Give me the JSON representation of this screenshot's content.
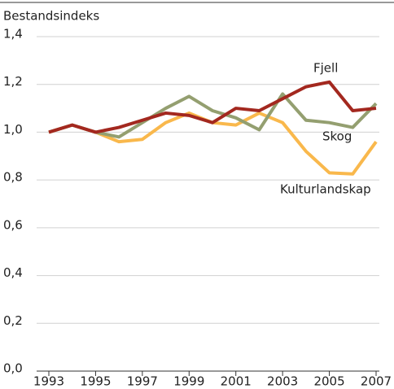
{
  "chart_data": {
    "type": "line",
    "y_label": "Bestandsindeks",
    "x": [
      1993,
      1994,
      1995,
      1996,
      1997,
      1998,
      1999,
      2000,
      2001,
      2002,
      2003,
      2004,
      2005,
      2006,
      2007
    ],
    "series": [
      {
        "name": "Kulturlandskap",
        "color": "#f9b84c",
        "values": [
          1.0,
          1.03,
          1.0,
          0.96,
          0.97,
          1.04,
          1.08,
          1.04,
          1.03,
          1.08,
          1.04,
          0.92,
          0.83,
          0.825,
          0.96
        ]
      },
      {
        "name": "Skog",
        "color": "#949f70",
        "values": [
          1.0,
          1.03,
          1.0,
          0.98,
          1.04,
          1.1,
          1.15,
          1.09,
          1.06,
          1.01,
          1.16,
          1.05,
          1.04,
          1.02,
          1.12
        ]
      },
      {
        "name": "Fjell",
        "color": "#a3281f",
        "values": [
          1.0,
          1.03,
          1.0,
          1.02,
          1.05,
          1.08,
          1.07,
          1.04,
          1.1,
          1.09,
          1.14,
          1.19,
          1.21,
          1.09,
          1.1
        ]
      }
    ],
    "xlim": [
      1993,
      2007
    ],
    "xticks": [
      1993,
      1995,
      1997,
      1999,
      2001,
      2003,
      2005,
      2007
    ],
    "ylim": [
      0,
      1.4
    ],
    "yticks": [
      {
        "value": 0,
        "label": "0,0"
      },
      {
        "value": 0.2,
        "label": "0,2"
      },
      {
        "value": 0.4,
        "label": "0,4"
      },
      {
        "value": 0.6,
        "label": "0,6"
      },
      {
        "value": 0.8,
        "label": "0,8"
      },
      {
        "value": 1.0,
        "label": "1,0"
      },
      {
        "value": 1.2,
        "label": "1,2"
      },
      {
        "value": 1.4,
        "label": "1,4"
      }
    ],
    "grid": true
  }
}
